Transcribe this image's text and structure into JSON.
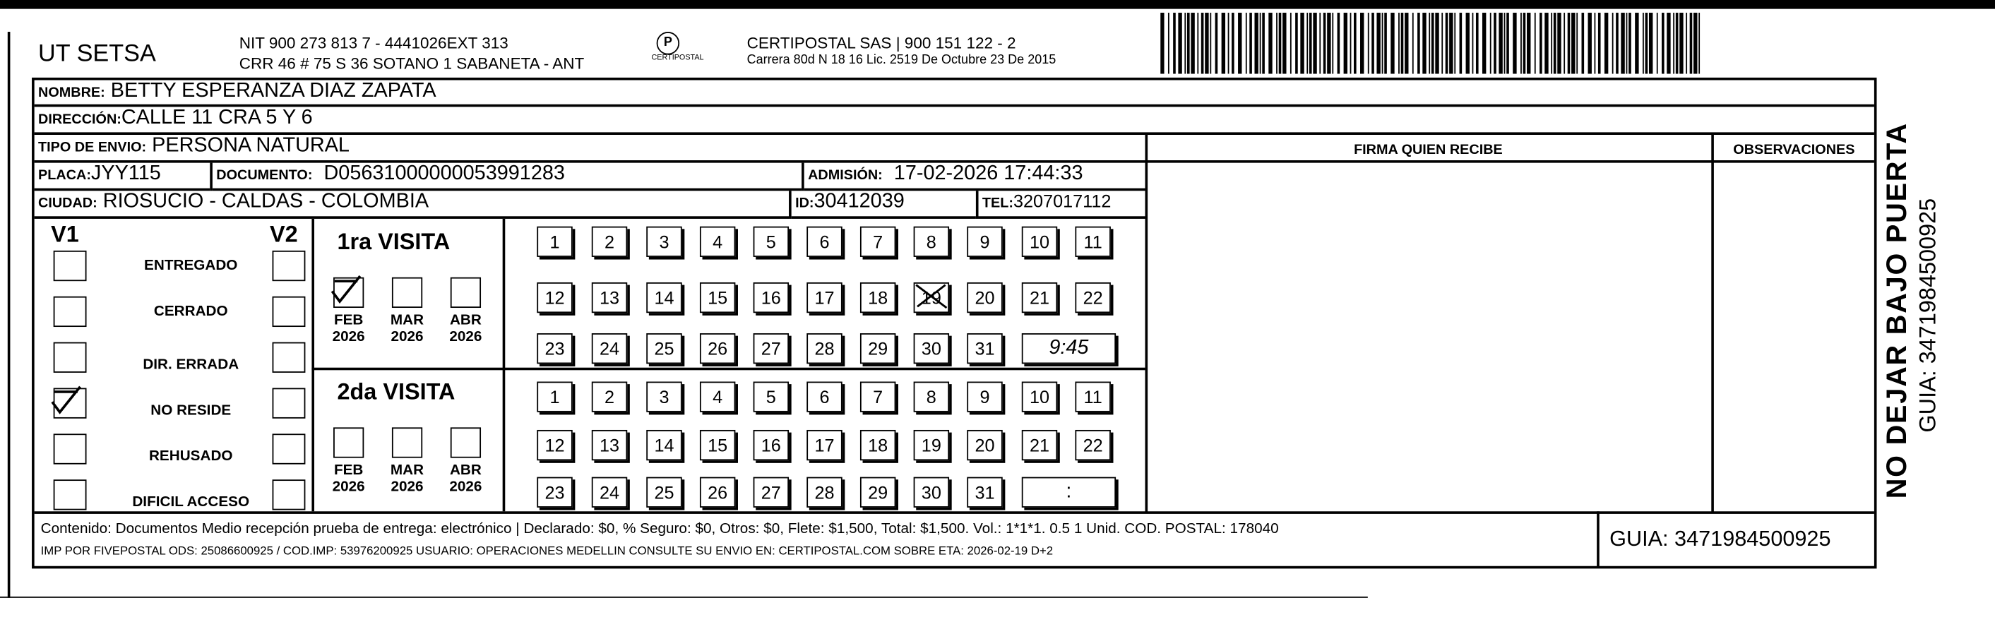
{
  "header": {
    "company": "UT SETSA",
    "nit_line": "NIT 900 273 813 7 - 4441026EXT 313",
    "address_line": "CRR 46 # 75 S 36 SOTANO 1 SABANETA - ANT",
    "logo_text": "CERTIPOSTAL",
    "carrier_line": "CERTIPOSTAL SAS | 900 151 122 - 2",
    "carrier_address": "Carrera 80d N 18 16  Lic. 2519 De Octubre 23 De 2015"
  },
  "fields": {
    "nombre_label": "NOMBRE:",
    "nombre": "BETTY ESPERANZA DIAZ ZAPATA",
    "direccion_label": "DIRECCIÓN:",
    "direccion": "CALLE 11 CRA 5 Y 6",
    "tipo_label": "TIPO DE ENVIO:",
    "tipo": "PERSONA NATURAL",
    "placa_label": "PLACA:",
    "placa": "JYY115",
    "documento_label": "DOCUMENTO:",
    "documento": "D05631000000053991283",
    "admision_label": "ADMISIÓN:",
    "admision": "17-02-2026 17:44:33",
    "ciudad_label": "CIUDAD:",
    "ciudad": "RIOSUCIO - CALDAS - COLOMBIA",
    "id_label": "ID:",
    "id": "30412039",
    "tel_label": "TEL:",
    "tel": "3207017112"
  },
  "columns": {
    "firma": "FIRMA QUIEN RECIBE",
    "observaciones": "OBSERVACIONES"
  },
  "status": {
    "v1_label": "V1",
    "v2_label": "V2",
    "items": [
      {
        "label": "ENTREGADO",
        "v1": false,
        "v2": false
      },
      {
        "label": "CERRADO",
        "v1": false,
        "v2": false
      },
      {
        "label": "DIR. ERRADA",
        "v1": false,
        "v2": false
      },
      {
        "label": "NO RESIDE",
        "v1": true,
        "v2": false
      },
      {
        "label": "REHUSADO",
        "v1": false,
        "v2": false
      },
      {
        "label": "DIFICIL ACCESO",
        "v1": false,
        "v2": false
      }
    ]
  },
  "visits": [
    {
      "title": "1ra VISITA",
      "months": [
        {
          "m": "FEB",
          "y": "2026",
          "checked": true
        },
        {
          "m": "MAR",
          "y": "2026",
          "checked": false
        },
        {
          "m": "ABR",
          "y": "2026",
          "checked": false
        }
      ],
      "marked_day": 19,
      "time": "9:45"
    },
    {
      "title": "2da VISITA",
      "months": [
        {
          "m": "FEB",
          "y": "2026",
          "checked": false
        },
        {
          "m": "MAR",
          "y": "2026",
          "checked": false
        },
        {
          "m": "ABR",
          "y": "2026",
          "checked": false
        }
      ],
      "marked_day": null,
      "time": ":"
    }
  ],
  "footer": {
    "line1": "Contenido: Documentos Medio recepción prueba de entrega: electrónico | Declarado: $0, % Seguro: $0, Otros: $0, Flete: $1,500, Total: $1,500. Vol.: 1*1*1. 0.5  1 Unid. COD. POSTAL: 178040",
    "line2": "IMP POR FIVEPOSTAL ODS: 25086600925 / COD.IMP: 53976200925 USUARIO: OPERACIONES MEDELLIN CONSULTE SU ENVIO EN: CERTIPOSTAL.COM SOBRE ETA: 2026-02-19 D+2",
    "guia": "GUIA: 3471984500925"
  },
  "side": {
    "warning": "NO DEJAR BAJO PUERTA",
    "guia": "GUIA: 3471984500925"
  }
}
